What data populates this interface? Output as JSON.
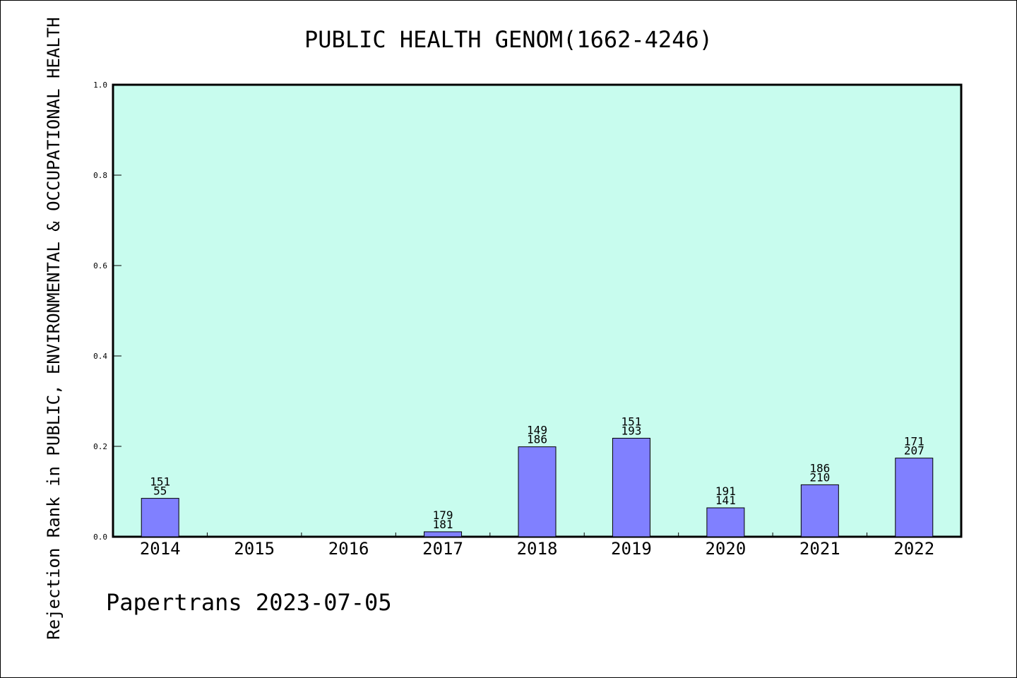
{
  "chart_data": {
    "type": "bar",
    "title": "PUBLIC HEALTH GENOM(1662-4246)",
    "ylabel": "Rejection Rank in PUBLIC, ENVIRONMENTAL & OCCUPATIONAL HEALTH",
    "xlabel": "",
    "footer": "Papertrans 2023-07-05",
    "ylim": [
      0,
      1.0
    ],
    "yticks": [
      "0.0",
      "0.2",
      "0.4",
      "0.6",
      "0.8",
      "1.0"
    ],
    "categories": [
      "2014",
      "2015",
      "2016",
      "2017",
      "2018",
      "2019",
      "2020",
      "2021",
      "2022"
    ],
    "values": [
      0.085,
      null,
      null,
      0.011,
      0.199,
      0.218,
      0.064,
      0.115,
      0.174
    ],
    "labels_top": [
      "151",
      "",
      "",
      "179",
      "149",
      "151",
      "191",
      "186",
      "171"
    ],
    "labels_bottom": [
      "55",
      "",
      "",
      "181",
      "186",
      "193",
      "141",
      "210",
      "207"
    ],
    "grid": false,
    "legend": "none",
    "colors": {
      "plot_background": "#c8fcee",
      "bar_fill": "#8080ff",
      "bar_stroke": "#000000",
      "axis": "#000000"
    }
  }
}
